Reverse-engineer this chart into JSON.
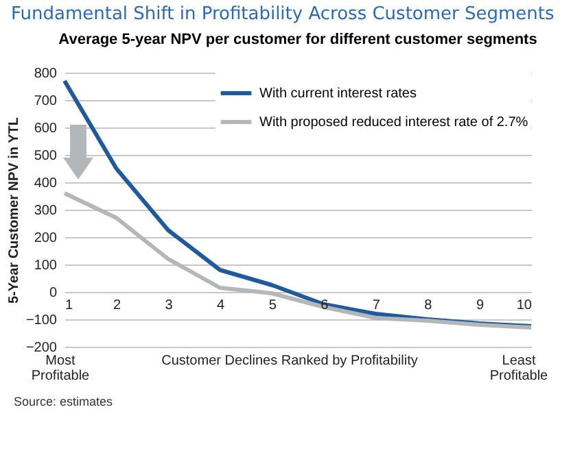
{
  "chart_data": {
    "type": "line",
    "title": "Fundamental Shift in Profitability Across Customer Segments",
    "subtitle": "Average 5-year NPV per customer for different customer segments",
    "xlabel": "Customer Declines Ranked by Profitability",
    "ylabel": "5-Year Customer NPV in YTL",
    "x": [
      1,
      2,
      3,
      4,
      5,
      6,
      7,
      8,
      9,
      10
    ],
    "series": [
      {
        "name": "With current interest rates",
        "color": "#1f5a9e",
        "values": [
          770,
          450,
          225,
          80,
          25,
          -45,
          -80,
          -100,
          -115,
          -125
        ]
      },
      {
        "name": "With proposed reduced interest rate of 2.7%",
        "color": "#b4b7ba",
        "values": [
          360,
          270,
          120,
          15,
          -5,
          -55,
          -95,
          -105,
          -120,
          -130
        ]
      }
    ],
    "xlim": [
      1,
      10
    ],
    "xticks": [
      1,
      2,
      3,
      4,
      5,
      6,
      7,
      8,
      9,
      10
    ],
    "ylim": [
      -200,
      800
    ],
    "yticks": [
      -200,
      -100,
      0,
      100,
      200,
      300,
      400,
      500,
      600,
      700,
      800
    ],
    "grid": "y",
    "legend": "top right",
    "marker": "none",
    "line_style": "solid",
    "annotations": [
      "Most Profitable",
      "Least Profitable",
      "Source: estimates"
    ]
  }
}
